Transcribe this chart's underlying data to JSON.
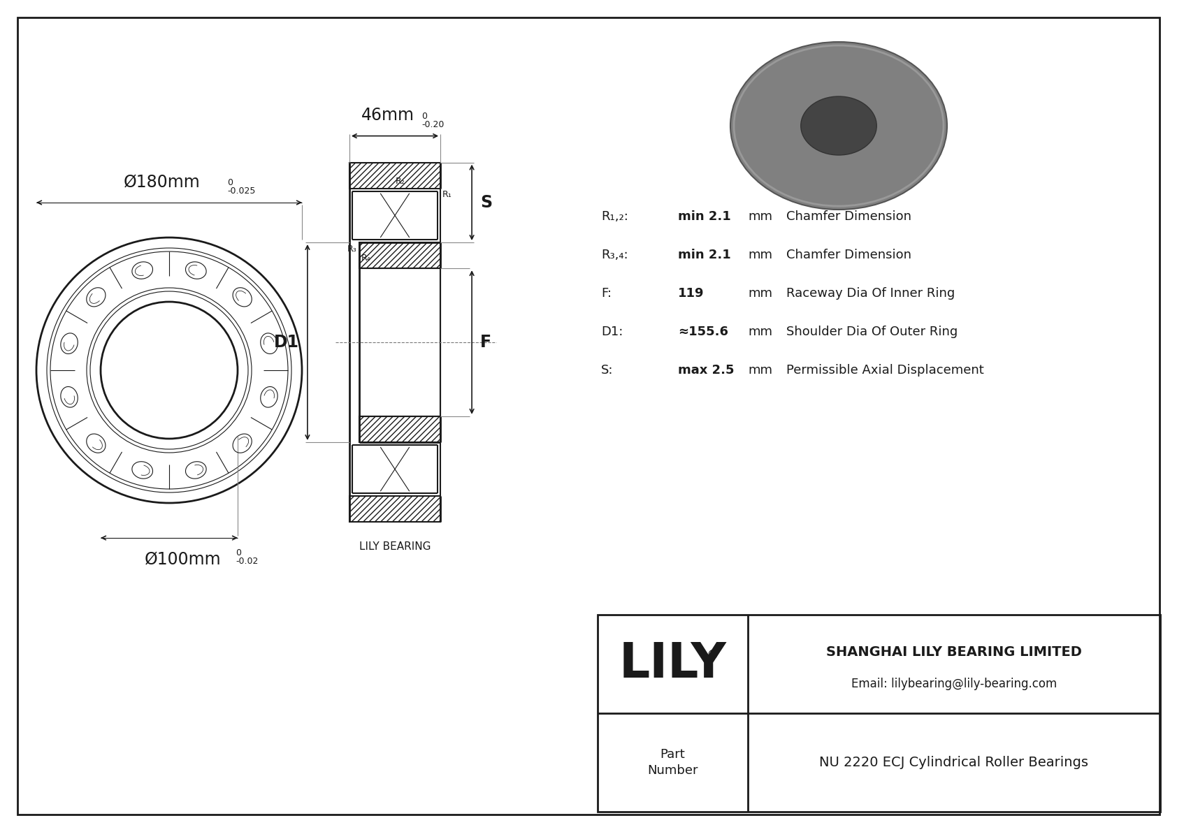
{
  "bg_color": "#ffffff",
  "line_color": "#1a1a1a",
  "title_company": "SHANGHAI LILY BEARING LIMITED",
  "title_email": "Email: lilybearing@lily-bearing.com",
  "part_label": "Part\nNumber",
  "part_name": "NU 2220 ECJ Cylindrical Roller Bearings",
  "lily_text": "LILY",
  "lily_registered": "®",
  "lily_bearing_label": "LILY BEARING",
  "dim_outer": "Ø180mm",
  "dim_outer_tol_top": "0",
  "dim_outer_tol_bot": "-0.025",
  "dim_inner": "Ø100mm",
  "dim_inner_tol_top": "0",
  "dim_inner_tol_bot": "-0.02",
  "dim_width": "46mm",
  "dim_width_tol_top": "0",
  "dim_width_tol_bot": "-0.20",
  "label_S": "S",
  "label_D1": "D1",
  "label_F": "F",
  "label_R1": "R₁",
  "label_R2": "R₂",
  "label_R3": "R₃",
  "label_R4": "R₄",
  "specs": [
    [
      "R₁,₂:",
      "min 2.1",
      "mm",
      "Chamfer Dimension"
    ],
    [
      "R₃,₄:",
      "min 2.1",
      "mm",
      "Chamfer Dimension"
    ],
    [
      "F:",
      "119",
      "mm",
      "Raceway Dia Of Inner Ring"
    ],
    [
      "D1:",
      "≈155.6",
      "mm",
      "Shoulder Dia Of Outer Ring"
    ],
    [
      "S:",
      "max 2.5",
      "mm",
      "Permissible Axial Displacement"
    ]
  ]
}
